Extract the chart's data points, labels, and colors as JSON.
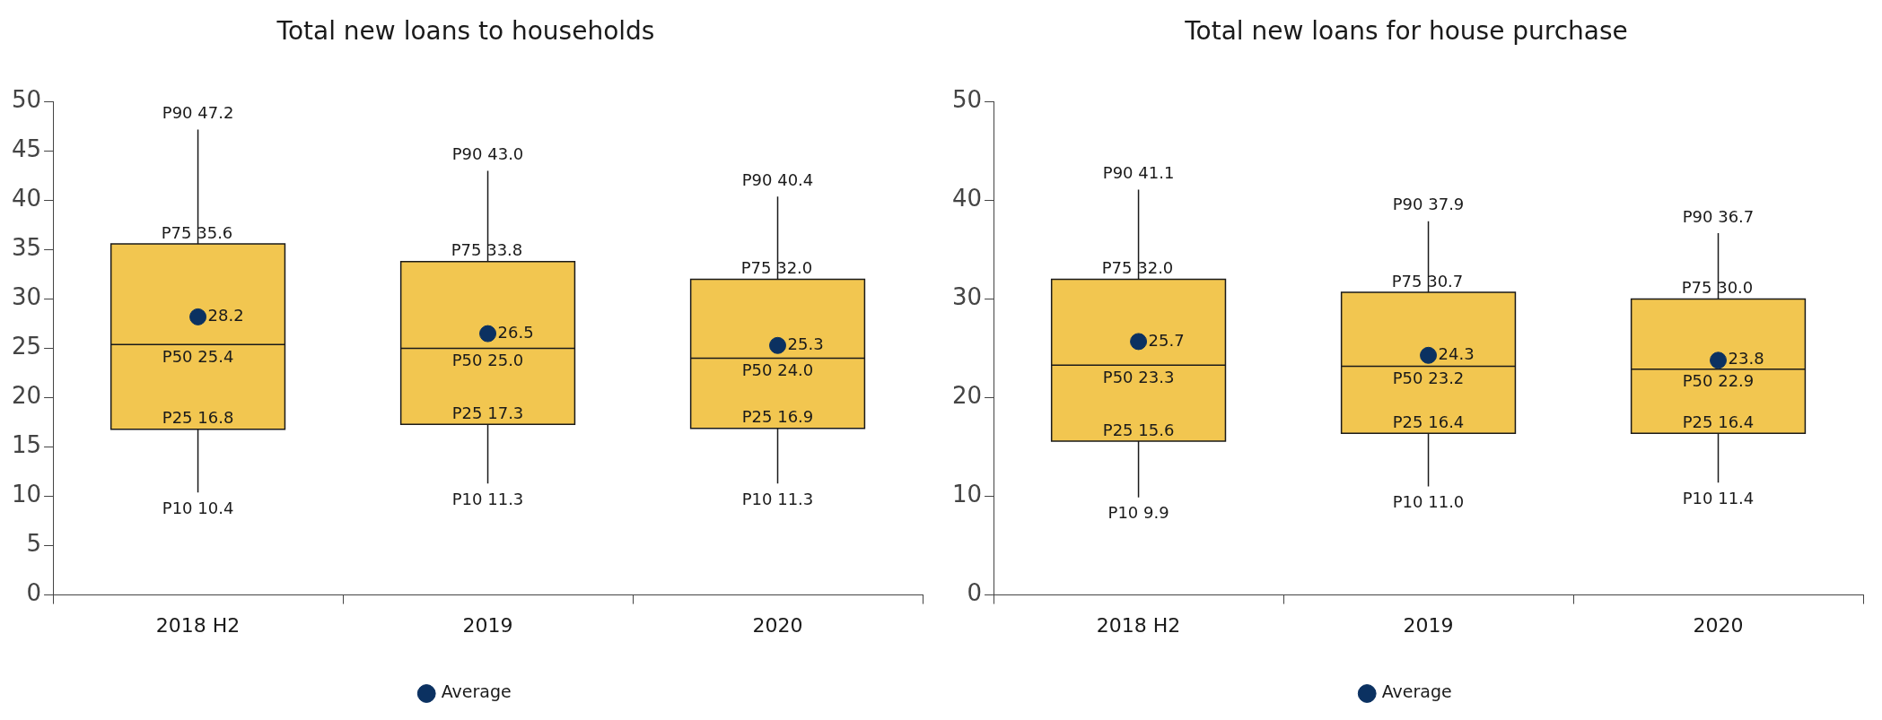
{
  "chart_data": [
    {
      "type": "box",
      "title": "Total new loans to households",
      "categories": [
        "2018 H2",
        "2019",
        "2020"
      ],
      "ylim": [
        0,
        50
      ],
      "yticks": [
        0,
        5,
        10,
        15,
        20,
        25,
        30,
        35,
        40,
        45,
        50
      ],
      "grid": false,
      "legend": "bottom",
      "series": [
        {
          "color": "#f2c650",
          "boxes": [
            {
              "low": 10.4,
              "q1": 16.8,
              "median": 25.4,
              "q3": 35.6,
              "high": 47.2
            },
            {
              "low": 11.3,
              "q1": 17.3,
              "median": 25.0,
              "q3": 33.8,
              "high": 43.0
            },
            {
              "low": 11.3,
              "q1": 16.9,
              "median": 24.0,
              "q3": 32.0,
              "high": 40.4
            }
          ]
        },
        {
          "type": "scatter",
          "name": "Average",
          "color": "#0b3161",
          "marker": "circle",
          "values": [
            28.2,
            26.5,
            25.3
          ]
        }
      ],
      "annotations": [
        {
          "text": "P90 47.2",
          "x": "2018 H2",
          "y": 47.2
        },
        {
          "text": "P75 35.6",
          "x": "2018 H2",
          "y": 35.6
        },
        {
          "text": "28.2",
          "x": "2018 H2",
          "y": 28.2
        },
        {
          "text": "P50 25.4",
          "x": "2018 H2",
          "y": 25.4
        },
        {
          "text": "P25 16.8",
          "x": "2018 H2",
          "y": 16.8
        },
        {
          "text": "P10 10.4",
          "x": "2018 H2",
          "y": 10.4
        },
        {
          "text": "P90 43.0",
          "x": "2019",
          "y": 43.0
        },
        {
          "text": "P75 33.8",
          "x": "2019",
          "y": 33.8
        },
        {
          "text": "26.5",
          "x": "2019",
          "y": 26.5
        },
        {
          "text": "P50 25.0",
          "x": "2019",
          "y": 25.0
        },
        {
          "text": "P25 17.3",
          "x": "2019",
          "y": 17.3
        },
        {
          "text": "P10 11.3",
          "x": "2019",
          "y": 11.3
        },
        {
          "text": "P90 40.4",
          "x": "2020",
          "y": 40.4
        },
        {
          "text": "P75 32.0",
          "x": "2020",
          "y": 32.0
        },
        {
          "text": "25.3",
          "x": "2020",
          "y": 25.3
        },
        {
          "text": "P50 24.0",
          "x": "2020",
          "y": 24.0
        },
        {
          "text": "P25 16.9",
          "x": "2020",
          "y": 16.9
        },
        {
          "text": "P10 11.3",
          "x": "2020",
          "y": 11.3
        }
      ]
    },
    {
      "type": "box",
      "title": "Total new loans for house purchase",
      "categories": [
        "2018 H2",
        "2019",
        "2020"
      ],
      "ylim": [
        0,
        50
      ],
      "yticks": [
        0,
        10,
        20,
        30,
        40,
        50
      ],
      "grid": false,
      "legend": "bottom",
      "series": [
        {
          "color": "#f2c650",
          "boxes": [
            {
              "low": 9.9,
              "q1": 15.6,
              "median": 23.3,
              "q3": 32.0,
              "high": 41.1
            },
            {
              "low": 11.0,
              "q1": 16.4,
              "median": 23.2,
              "q3": 30.7,
              "high": 37.9
            },
            {
              "low": 11.4,
              "q1": 16.4,
              "median": 22.9,
              "q3": 30.0,
              "high": 36.7
            }
          ]
        },
        {
          "type": "scatter",
          "name": "Average",
          "color": "#0b3161",
          "marker": "circle",
          "values": [
            25.7,
            24.3,
            23.8
          ]
        }
      ],
      "annotations": [
        {
          "text": "P90 41.1",
          "x": "2018 H2",
          "y": 41.1
        },
        {
          "text": "P75 32.0",
          "x": "2018 H2",
          "y": 32.0
        },
        {
          "text": "25.7",
          "x": "2018 H2",
          "y": 25.7
        },
        {
          "text": "P50 23.3",
          "x": "2018 H2",
          "y": 23.3
        },
        {
          "text": "P25 15.6",
          "x": "2018 H2",
          "y": 15.6
        },
        {
          "text": "P10 9.9",
          "x": "2018 H2",
          "y": 9.9
        },
        {
          "text": "P90 37.9",
          "x": "2019",
          "y": 37.9
        },
        {
          "text": "P75 30.7",
          "x": "2019",
          "y": 30.7
        },
        {
          "text": "24.3",
          "x": "2019",
          "y": 24.3
        },
        {
          "text": "P50 23.2",
          "x": "2019",
          "y": 23.2
        },
        {
          "text": "P25 16.4",
          "x": "2019",
          "y": 16.4
        },
        {
          "text": "P10 11.0",
          "x": "2019",
          "y": 11.0
        },
        {
          "text": "P90 36.7",
          "x": "2020",
          "y": 36.7
        },
        {
          "text": "P75 30.0",
          "x": "2020",
          "y": 30.0
        },
        {
          "text": "23.8",
          "x": "2020",
          "y": 23.8
        },
        {
          "text": "P50 22.9",
          "x": "2020",
          "y": 22.9
        },
        {
          "text": "P25 16.4",
          "x": "2020",
          "y": 16.4
        },
        {
          "text": "P10 11.4",
          "x": "2020",
          "y": 11.4
        }
      ]
    }
  ]
}
